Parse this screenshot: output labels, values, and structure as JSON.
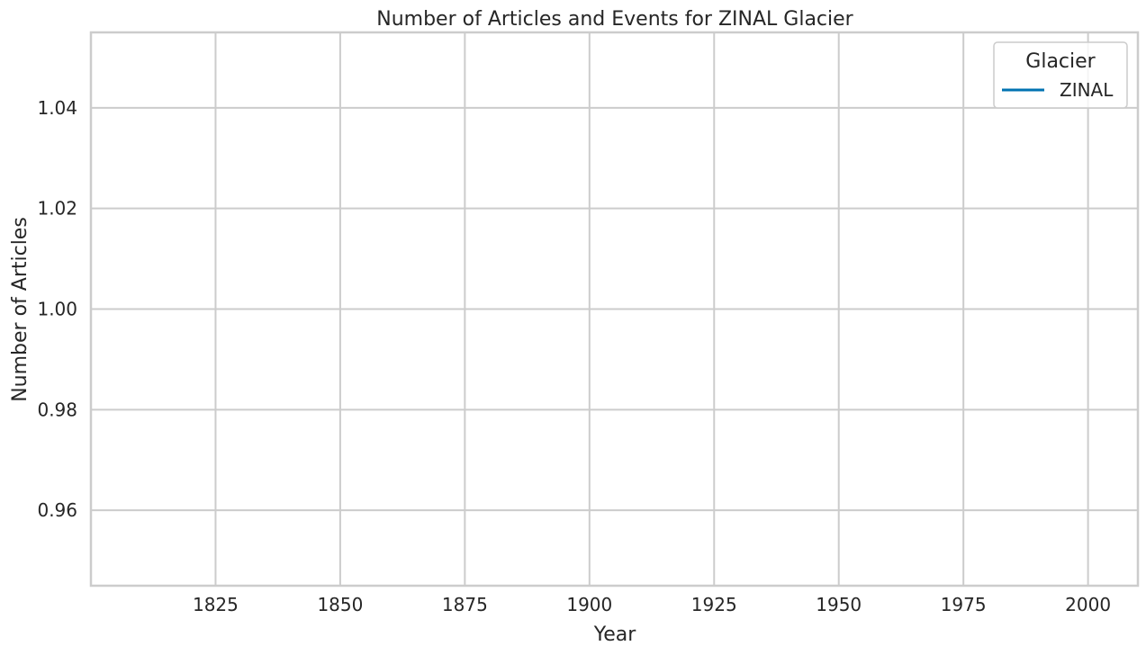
{
  "chart_data": {
    "type": "line",
    "title": "Number of Articles and Events for ZINAL Glacier",
    "xlabel": "Year",
    "ylabel": "Number of Articles",
    "xlim": [
      1800,
      2010
    ],
    "ylim": [
      0.945,
      1.055
    ],
    "xticks": [
      1825,
      1850,
      1875,
      1900,
      1925,
      1950,
      1975,
      2000
    ],
    "yticks": [
      0.96,
      0.98,
      1.0,
      1.02,
      1.04
    ],
    "ytick_labels": [
      "0.96",
      "0.98",
      "1.00",
      "1.02",
      "1.04"
    ],
    "grid": true,
    "legend": {
      "title": "Glacier",
      "position": "top-right",
      "entries": [
        {
          "name": "ZINAL",
          "color": "#0173b2"
        }
      ]
    },
    "series": [
      {
        "name": "ZINAL",
        "color": "#0173b2",
        "x": [],
        "y": []
      }
    ]
  }
}
